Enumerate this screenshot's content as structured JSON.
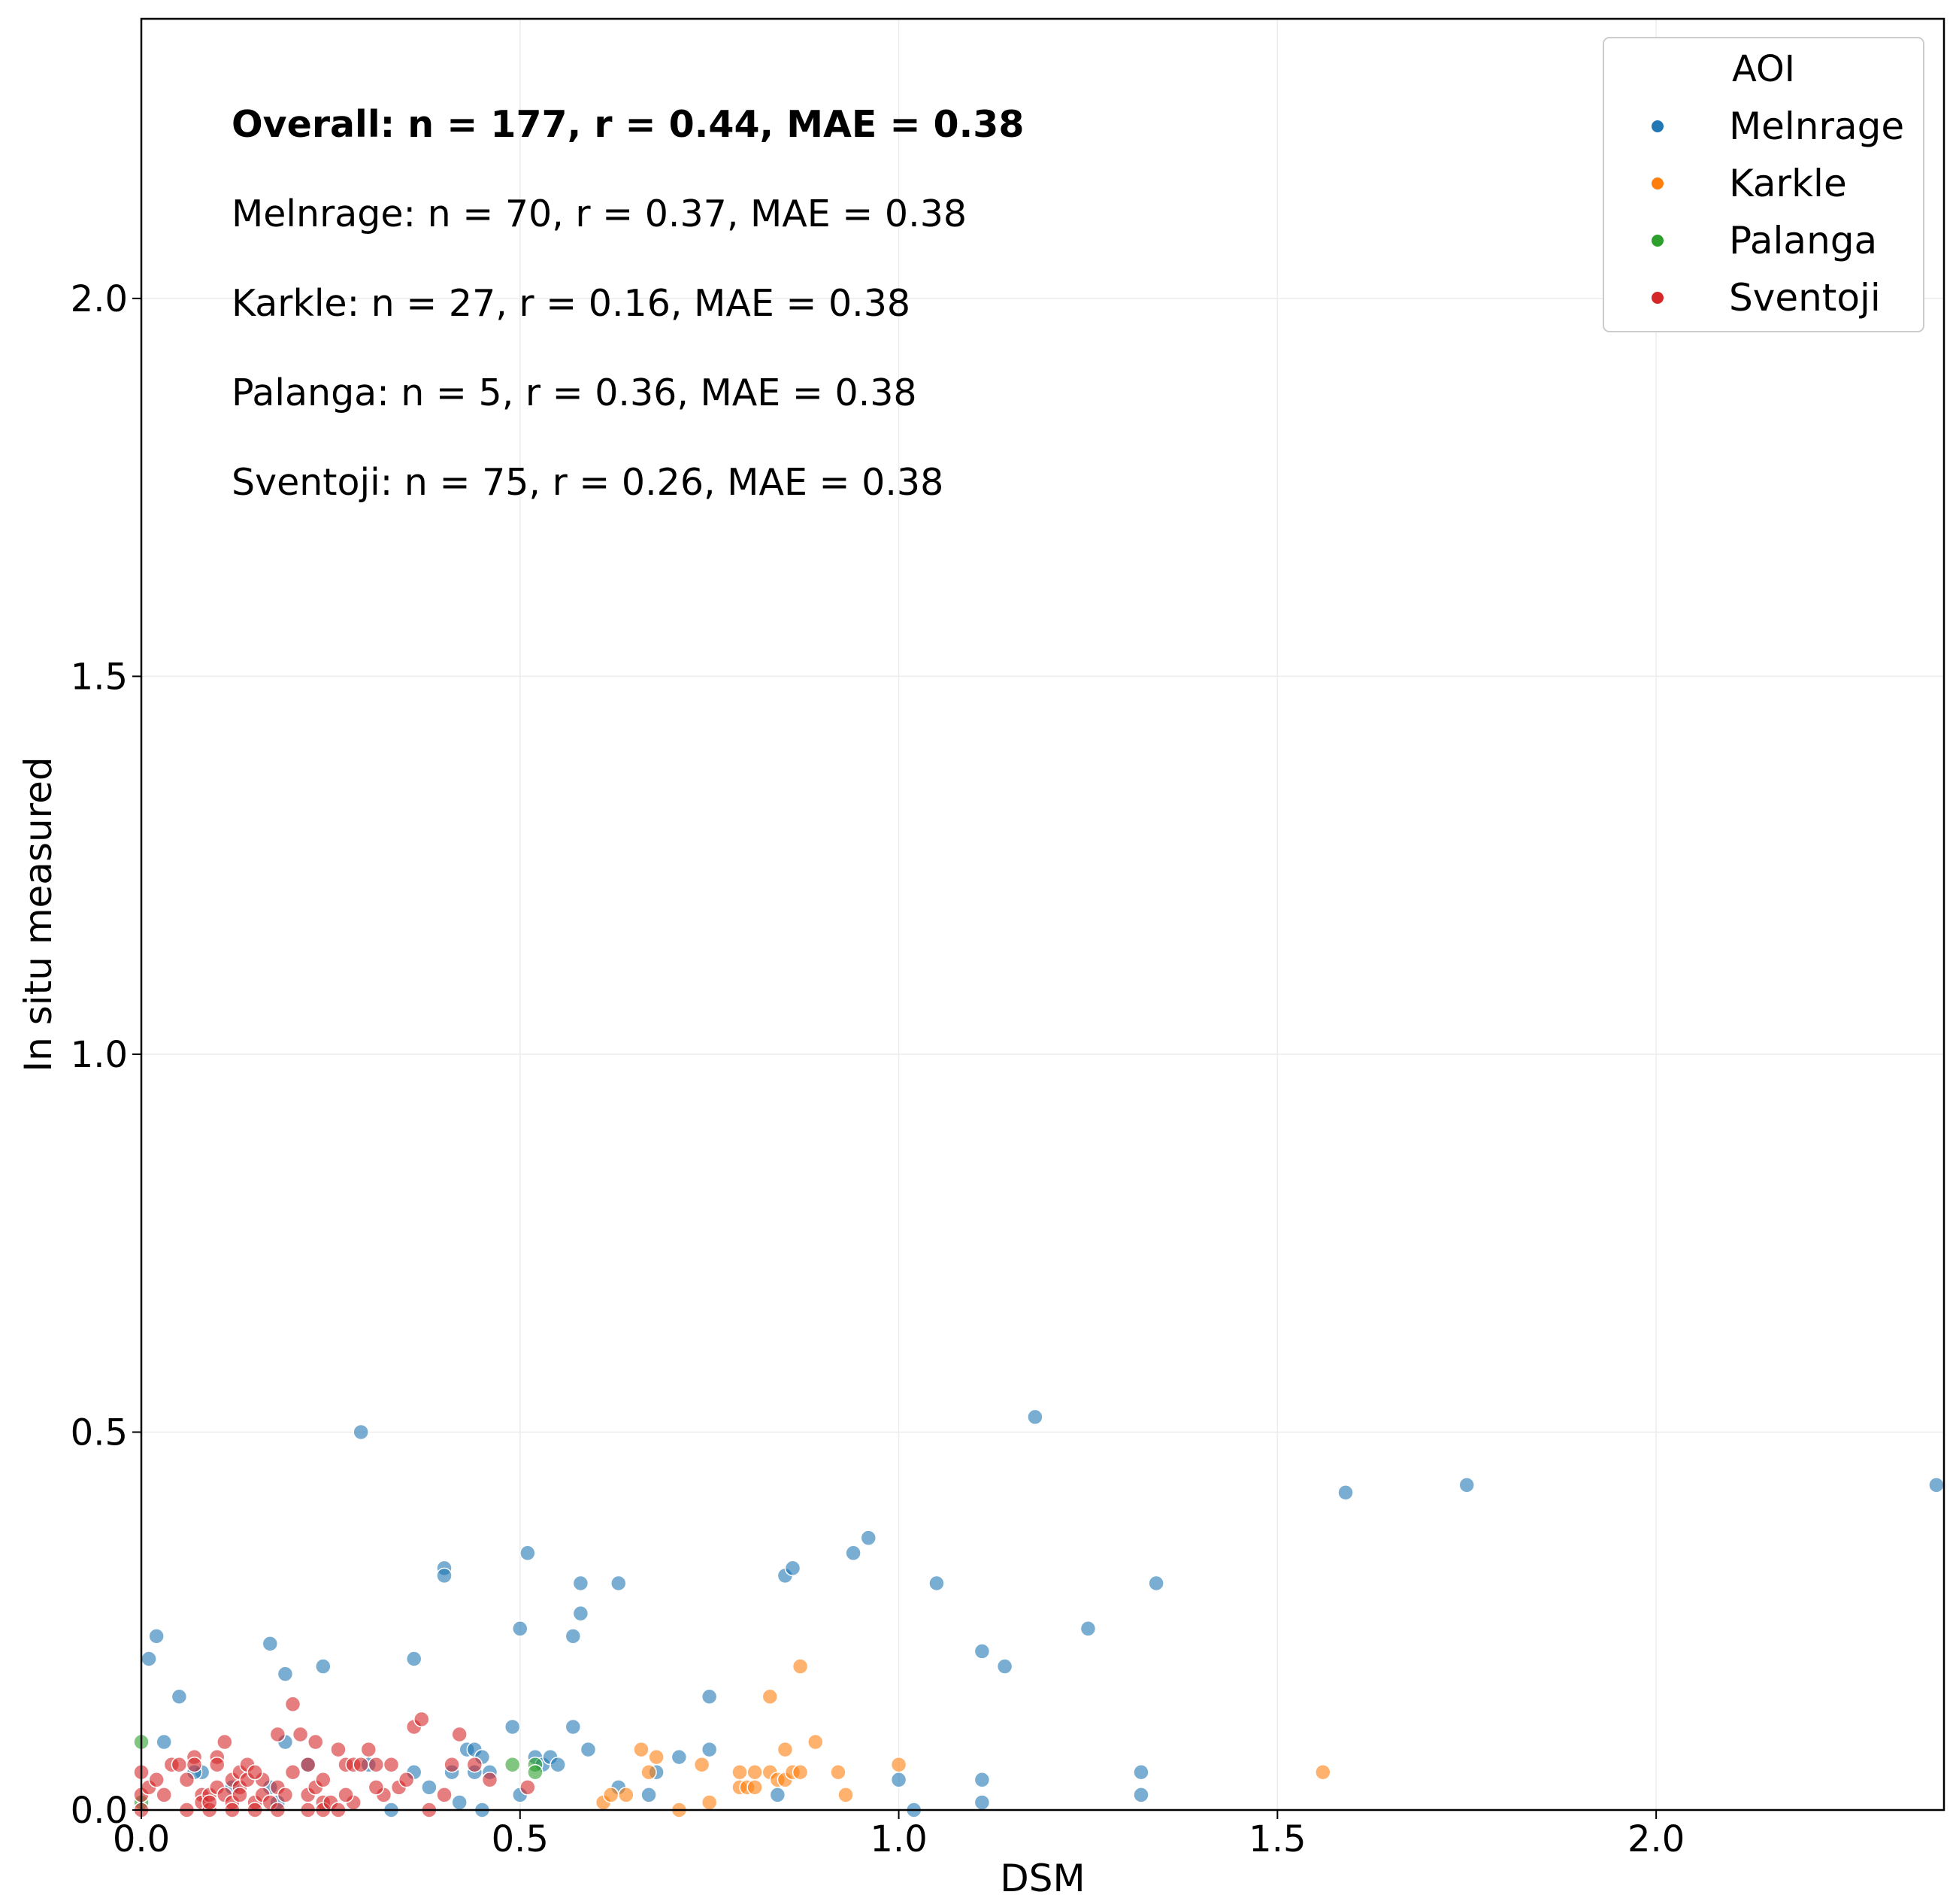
{
  "chart_data": {
    "type": "scatter",
    "xlabel": "DSM",
    "ylabel": "In situ measured",
    "xlim": [
      0.0,
      2.38
    ],
    "ylim": [
      0.0,
      2.37
    ],
    "x_ticks": [
      "0.0",
      "0.5",
      "1.0",
      "1.5",
      "2.0"
    ],
    "y_ticks": [
      "0.0",
      "0.5",
      "1.0",
      "1.5",
      "2.0"
    ],
    "grid": true,
    "legend": {
      "title": "AOI",
      "placement": "top-right"
    },
    "annotations": [
      {
        "text": "Overall: n = 177, r = 0.44, MAE = 0.38",
        "bold": true
      },
      {
        "text": "Melnrage: n = 70, r = 0.37, MAE = 0.38",
        "bold": false
      },
      {
        "text": "Karkle: n = 27, r = 0.16, MAE = 0.38",
        "bold": false
      },
      {
        "text": "Palanga: n = 5, r = 0.36, MAE = 0.38",
        "bold": false
      },
      {
        "text": "Sventoji: n = 75, r = 0.26, MAE = 0.38",
        "bold": false
      }
    ],
    "series": [
      {
        "name": "Melnrage",
        "color": "#1f77b4",
        "points": [
          [
            0.01,
            0.2
          ],
          [
            0.02,
            0.23
          ],
          [
            0.03,
            0.09
          ],
          [
            0.05,
            0.15
          ],
          [
            0.08,
            0.05
          ],
          [
            0.17,
            0.22
          ],
          [
            0.19,
            0.18
          ],
          [
            0.19,
            0.09
          ],
          [
            0.24,
            0.19
          ],
          [
            0.29,
            0.5
          ],
          [
            0.36,
            0.2
          ],
          [
            0.36,
            0.05
          ],
          [
            0.4,
            0.32
          ],
          [
            0.4,
            0.31
          ],
          [
            0.41,
            0.05
          ],
          [
            0.43,
            0.08
          ],
          [
            0.44,
            0.08
          ],
          [
            0.44,
            0.05
          ],
          [
            0.45,
            0.07
          ],
          [
            0.46,
            0.05
          ],
          [
            0.49,
            0.11
          ],
          [
            0.5,
            0.24
          ],
          [
            0.51,
            0.34
          ],
          [
            0.52,
            0.07
          ],
          [
            0.53,
            0.06
          ],
          [
            0.54,
            0.07
          ],
          [
            0.57,
            0.11
          ],
          [
            0.57,
            0.23
          ],
          [
            0.58,
            0.3
          ],
          [
            0.58,
            0.26
          ],
          [
            0.59,
            0.08
          ],
          [
            0.63,
            0.3
          ],
          [
            0.63,
            0.03
          ],
          [
            0.67,
            0.02
          ],
          [
            0.71,
            0.07
          ],
          [
            0.75,
            0.15
          ],
          [
            0.75,
            0.08
          ],
          [
            0.84,
            0.02
          ],
          [
            0.85,
            0.31
          ],
          [
            0.86,
            0.32
          ],
          [
            0.94,
            0.34
          ],
          [
            0.96,
            0.36
          ],
          [
            1.0,
            0.04
          ],
          [
            1.05,
            0.3
          ],
          [
            1.11,
            0.21
          ],
          [
            1.11,
            0.04
          ],
          [
            1.11,
            0.01
          ],
          [
            1.14,
            0.19
          ],
          [
            1.18,
            0.52
          ],
          [
            1.25,
            0.24
          ],
          [
            1.32,
            0.05
          ],
          [
            1.32,
            0.02
          ],
          [
            1.34,
            0.3
          ],
          [
            1.59,
            0.42
          ],
          [
            1.75,
            0.43
          ],
          [
            2.37,
            0.43
          ],
          [
            0.17,
            0.03
          ],
          [
            0.33,
            0.0
          ],
          [
            0.45,
            0.0
          ],
          [
            0.5,
            0.02
          ],
          [
            1.02,
            0.0
          ],
          [
            0.42,
            0.01
          ],
          [
            0.18,
            0.01
          ],
          [
            0.07,
            0.05
          ],
          [
            0.12,
            0.03
          ],
          [
            0.22,
            0.06
          ],
          [
            0.3,
            0.06
          ],
          [
            0.38,
            0.03
          ],
          [
            0.55,
            0.06
          ],
          [
            0.68,
            0.05
          ]
        ]
      },
      {
        "name": "Karkle",
        "color": "#ff7f0e",
        "points": [
          [
            0.61,
            0.01
          ],
          [
            0.62,
            0.02
          ],
          [
            0.64,
            0.02
          ],
          [
            0.66,
            0.08
          ],
          [
            0.67,
            0.05
          ],
          [
            0.68,
            0.07
          ],
          [
            0.71,
            0.0
          ],
          [
            0.74,
            0.06
          ],
          [
            0.75,
            0.01
          ],
          [
            0.79,
            0.03
          ],
          [
            0.79,
            0.05
          ],
          [
            0.8,
            0.03
          ],
          [
            0.81,
            0.05
          ],
          [
            0.81,
            0.03
          ],
          [
            0.83,
            0.15
          ],
          [
            0.83,
            0.05
          ],
          [
            0.84,
            0.04
          ],
          [
            0.85,
            0.04
          ],
          [
            0.85,
            0.08
          ],
          [
            0.86,
            0.05
          ],
          [
            0.87,
            0.05
          ],
          [
            0.87,
            0.19
          ],
          [
            0.89,
            0.09
          ],
          [
            0.92,
            0.05
          ],
          [
            0.93,
            0.02
          ],
          [
            1.0,
            0.06
          ],
          [
            1.56,
            0.05
          ]
        ]
      },
      {
        "name": "Palanga",
        "color": "#2ca02c",
        "points": [
          [
            0.0,
            0.09
          ],
          [
            0.0,
            0.01
          ],
          [
            0.49,
            0.06
          ],
          [
            0.52,
            0.06
          ],
          [
            0.52,
            0.05
          ]
        ]
      },
      {
        "name": "Sventoji",
        "color": "#d62728",
        "points": [
          [
            0.0,
            0.05
          ],
          [
            0.0,
            0.02
          ],
          [
            0.0,
            0.0
          ],
          [
            0.01,
            0.03
          ],
          [
            0.02,
            0.04
          ],
          [
            0.03,
            0.02
          ],
          [
            0.04,
            0.06
          ],
          [
            0.06,
            0.04
          ],
          [
            0.07,
            0.07
          ],
          [
            0.07,
            0.06
          ],
          [
            0.08,
            0.02
          ],
          [
            0.08,
            0.01
          ],
          [
            0.09,
            0.0
          ],
          [
            0.09,
            0.02
          ],
          [
            0.09,
            0.01
          ],
          [
            0.1,
            0.07
          ],
          [
            0.1,
            0.06
          ],
          [
            0.1,
            0.03
          ],
          [
            0.11,
            0.09
          ],
          [
            0.11,
            0.02
          ],
          [
            0.12,
            0.01
          ],
          [
            0.12,
            0.0
          ],
          [
            0.12,
            0.04
          ],
          [
            0.13,
            0.03
          ],
          [
            0.13,
            0.05
          ],
          [
            0.13,
            0.02
          ],
          [
            0.14,
            0.06
          ],
          [
            0.14,
            0.04
          ],
          [
            0.15,
            0.01
          ],
          [
            0.15,
            0.0
          ],
          [
            0.16,
            0.04
          ],
          [
            0.16,
            0.02
          ],
          [
            0.17,
            0.01
          ],
          [
            0.18,
            0.1
          ],
          [
            0.18,
            0.03
          ],
          [
            0.18,
            0.0
          ],
          [
            0.19,
            0.02
          ],
          [
            0.2,
            0.14
          ],
          [
            0.21,
            0.1
          ],
          [
            0.22,
            0.06
          ],
          [
            0.22,
            0.02
          ],
          [
            0.22,
            0.0
          ],
          [
            0.23,
            0.09
          ],
          [
            0.23,
            0.03
          ],
          [
            0.24,
            0.04
          ],
          [
            0.24,
            0.01
          ],
          [
            0.24,
            0.0
          ],
          [
            0.25,
            0.01
          ],
          [
            0.26,
            0.08
          ],
          [
            0.27,
            0.06
          ],
          [
            0.28,
            0.01
          ],
          [
            0.28,
            0.06
          ],
          [
            0.29,
            0.06
          ],
          [
            0.3,
            0.08
          ],
          [
            0.31,
            0.06
          ],
          [
            0.32,
            0.02
          ],
          [
            0.33,
            0.06
          ],
          [
            0.34,
            0.03
          ],
          [
            0.36,
            0.11
          ],
          [
            0.37,
            0.12
          ],
          [
            0.38,
            0.0
          ],
          [
            0.41,
            0.06
          ],
          [
            0.42,
            0.1
          ],
          [
            0.46,
            0.04
          ],
          [
            0.51,
            0.03
          ],
          [
            0.05,
            0.06
          ],
          [
            0.06,
            0.0
          ],
          [
            0.15,
            0.05
          ],
          [
            0.2,
            0.05
          ],
          [
            0.26,
            0.0
          ],
          [
            0.27,
            0.02
          ],
          [
            0.31,
            0.03
          ],
          [
            0.35,
            0.04
          ],
          [
            0.4,
            0.02
          ],
          [
            0.44,
            0.06
          ]
        ]
      }
    ]
  }
}
